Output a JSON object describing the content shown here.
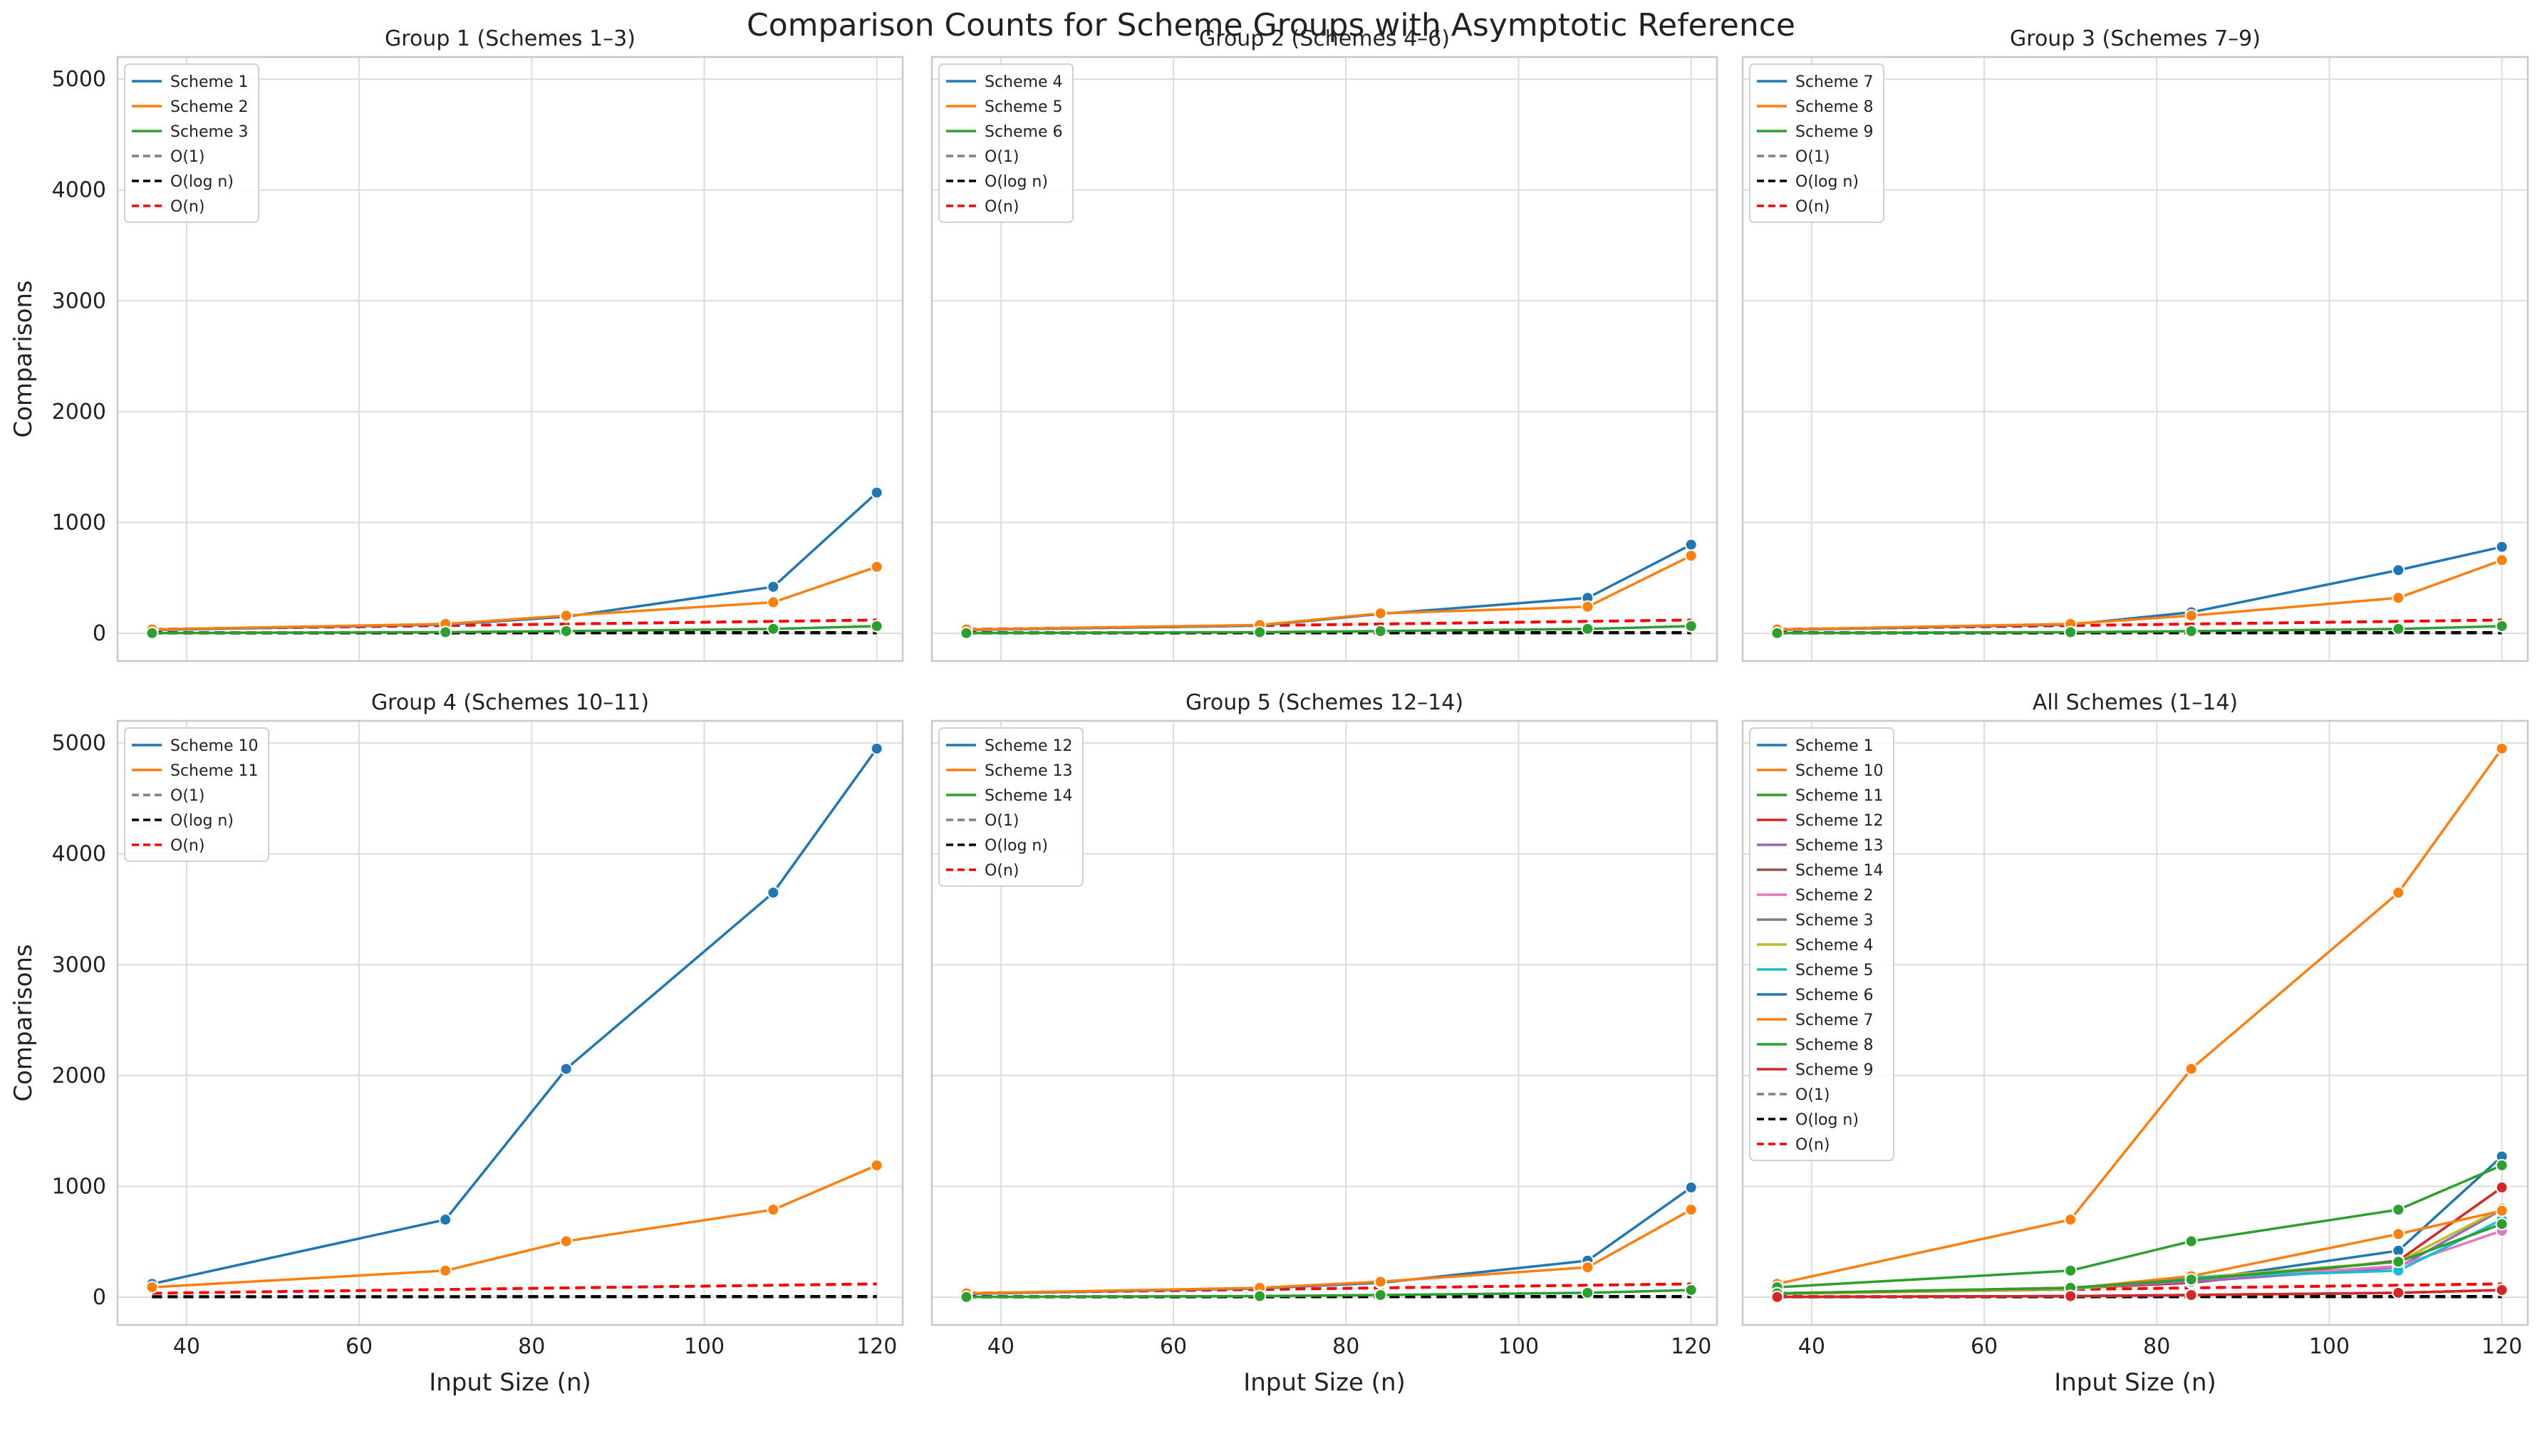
{
  "figure_title": "Comparison Counts for Scheme Groups with Asymptotic Reference",
  "shared_axes": {
    "xlabel": "Input Size (n)",
    "ylabel": "Comparisons",
    "xlim": [
      32,
      123
    ],
    "ylim": [
      -250,
      5200
    ],
    "xticks": [
      40,
      60,
      80,
      100,
      120
    ],
    "yticks": [
      0,
      1000,
      2000,
      3000,
      4000,
      5000
    ],
    "grid": true
  },
  "chart_data": [
    {
      "type": "line",
      "title": "Group 1 (Schemes 1–3)",
      "legend_position": "top-left",
      "x": [
        36,
        70,
        84,
        108,
        120
      ],
      "series": [
        {
          "name": "Scheme 1",
          "values": [
            30,
            80,
            150,
            420,
            1270
          ],
          "color": "#1f77b4",
          "style": "solid",
          "markers": true
        },
        {
          "name": "Scheme 2",
          "values": [
            35,
            85,
            160,
            280,
            600
          ],
          "color": "#ff7f0e",
          "style": "solid",
          "markers": true
        },
        {
          "name": "Scheme 3",
          "values": [
            2,
            10,
            20,
            40,
            65
          ],
          "color": "#2ca02c",
          "style": "solid",
          "markers": true
        },
        {
          "name": "O(1)",
          "values": [
            1,
            1,
            1,
            1,
            1
          ],
          "color": "#808080",
          "style": "dashed",
          "markers": false
        },
        {
          "name": "O(log n)",
          "values": [
            5.2,
            6.1,
            6.4,
            6.8,
            6.9
          ],
          "color": "#000000",
          "style": "dashed",
          "markers": false
        },
        {
          "name": "O(n)",
          "values": [
            36,
            70,
            84,
            108,
            120
          ],
          "color": "#ff0000",
          "style": "dashed",
          "markers": false
        }
      ]
    },
    {
      "type": "line",
      "title": "Group 2 (Schemes 4–6)",
      "legend_position": "top-left",
      "x": [
        36,
        70,
        84,
        108,
        120
      ],
      "series": [
        {
          "name": "Scheme 4",
          "values": [
            30,
            70,
            175,
            320,
            800
          ],
          "color": "#1f77b4",
          "style": "solid",
          "markers": true
        },
        {
          "name": "Scheme 5",
          "values": [
            35,
            75,
            180,
            240,
            700
          ],
          "color": "#ff7f0e",
          "style": "solid",
          "markers": true
        },
        {
          "name": "Scheme 6",
          "values": [
            2,
            10,
            20,
            40,
            65
          ],
          "color": "#2ca02c",
          "style": "solid",
          "markers": true
        },
        {
          "name": "O(1)",
          "values": [
            1,
            1,
            1,
            1,
            1
          ],
          "color": "#808080",
          "style": "dashed",
          "markers": false
        },
        {
          "name": "O(log n)",
          "values": [
            5.2,
            6.1,
            6.4,
            6.8,
            6.9
          ],
          "color": "#000000",
          "style": "dashed",
          "markers": false
        },
        {
          "name": "O(n)",
          "values": [
            36,
            70,
            84,
            108,
            120
          ],
          "color": "#ff0000",
          "style": "dashed",
          "markers": false
        }
      ]
    },
    {
      "type": "line",
      "title": "Group 3 (Schemes 7–9)",
      "legend_position": "top-left",
      "x": [
        36,
        70,
        84,
        108,
        120
      ],
      "series": [
        {
          "name": "Scheme 7",
          "values": [
            30,
            80,
            190,
            570,
            780
          ],
          "color": "#1f77b4",
          "style": "solid",
          "markers": true
        },
        {
          "name": "Scheme 8",
          "values": [
            35,
            85,
            160,
            320,
            660
          ],
          "color": "#ff7f0e",
          "style": "solid",
          "markers": true
        },
        {
          "name": "Scheme 9",
          "values": [
            2,
            10,
            20,
            40,
            65
          ],
          "color": "#2ca02c",
          "style": "solid",
          "markers": true
        },
        {
          "name": "O(1)",
          "values": [
            1,
            1,
            1,
            1,
            1
          ],
          "color": "#808080",
          "style": "dashed",
          "markers": false
        },
        {
          "name": "O(log n)",
          "values": [
            5.2,
            6.1,
            6.4,
            6.8,
            6.9
          ],
          "color": "#000000",
          "style": "dashed",
          "markers": false
        },
        {
          "name": "O(n)",
          "values": [
            36,
            70,
            84,
            108,
            120
          ],
          "color": "#ff0000",
          "style": "dashed",
          "markers": false
        }
      ]
    },
    {
      "type": "line",
      "title": "Group 4 (Schemes 10–11)",
      "legend_position": "top-left",
      "x": [
        36,
        70,
        84,
        108,
        120
      ],
      "series": [
        {
          "name": "Scheme 10",
          "values": [
            120,
            700,
            2060,
            3650,
            4950
          ],
          "color": "#1f77b4",
          "style": "solid",
          "markers": true
        },
        {
          "name": "Scheme 11",
          "values": [
            90,
            240,
            505,
            790,
            1190
          ],
          "color": "#ff7f0e",
          "style": "solid",
          "markers": true
        },
        {
          "name": "O(1)",
          "values": [
            1,
            1,
            1,
            1,
            1
          ],
          "color": "#808080",
          "style": "dashed",
          "markers": false
        },
        {
          "name": "O(log n)",
          "values": [
            5.2,
            6.1,
            6.4,
            6.8,
            6.9
          ],
          "color": "#000000",
          "style": "dashed",
          "markers": false
        },
        {
          "name": "O(n)",
          "values": [
            36,
            70,
            84,
            108,
            120
          ],
          "color": "#ff0000",
          "style": "dashed",
          "markers": false
        }
      ]
    },
    {
      "type": "line",
      "title": "Group 5 (Schemes 12–14)",
      "legend_position": "top-left",
      "x": [
        36,
        70,
        84,
        108,
        120
      ],
      "series": [
        {
          "name": "Scheme 12",
          "values": [
            30,
            80,
            130,
            330,
            990
          ],
          "color": "#1f77b4",
          "style": "solid",
          "markers": true
        },
        {
          "name": "Scheme 13",
          "values": [
            35,
            85,
            140,
            270,
            790
          ],
          "color": "#ff7f0e",
          "style": "solid",
          "markers": true
        },
        {
          "name": "Scheme 14",
          "values": [
            2,
            10,
            20,
            40,
            65
          ],
          "color": "#2ca02c",
          "style": "solid",
          "markers": true
        },
        {
          "name": "O(1)",
          "values": [
            1,
            1,
            1,
            1,
            1
          ],
          "color": "#808080",
          "style": "dashed",
          "markers": false
        },
        {
          "name": "O(log n)",
          "values": [
            5.2,
            6.1,
            6.4,
            6.8,
            6.9
          ],
          "color": "#000000",
          "style": "dashed",
          "markers": false
        },
        {
          "name": "O(n)",
          "values": [
            36,
            70,
            84,
            108,
            120
          ],
          "color": "#ff0000",
          "style": "dashed",
          "markers": false
        }
      ]
    },
    {
      "type": "line",
      "title": "All Schemes (1–14)",
      "legend_position": "top-left",
      "x": [
        36,
        70,
        84,
        108,
        120
      ],
      "series": [
        {
          "name": "Scheme 1",
          "values": [
            30,
            80,
            150,
            420,
            1270
          ],
          "color": "#1f77b4",
          "style": "solid",
          "markers": true
        },
        {
          "name": "Scheme 10",
          "values": [
            120,
            700,
            2060,
            3650,
            4950
          ],
          "color": "#ff7f0e",
          "style": "solid",
          "markers": true
        },
        {
          "name": "Scheme 11",
          "values": [
            90,
            240,
            505,
            790,
            1190
          ],
          "color": "#2ca02c",
          "style": "solid",
          "markers": true
        },
        {
          "name": "Scheme 12",
          "values": [
            30,
            80,
            130,
            330,
            990
          ],
          "color": "#d62728",
          "style": "solid",
          "markers": true
        },
        {
          "name": "Scheme 13",
          "values": [
            35,
            85,
            140,
            270,
            790
          ],
          "color": "#9467bd",
          "style": "solid",
          "markers": true
        },
        {
          "name": "Scheme 14",
          "values": [
            2,
            10,
            20,
            40,
            65
          ],
          "color": "#8c564b",
          "style": "solid",
          "markers": true
        },
        {
          "name": "Scheme 2",
          "values": [
            35,
            85,
            160,
            280,
            600
          ],
          "color": "#e377c2",
          "style": "solid",
          "markers": true
        },
        {
          "name": "Scheme 3",
          "values": [
            2,
            10,
            20,
            40,
            65
          ],
          "color": "#7f7f7f",
          "style": "solid",
          "markers": true
        },
        {
          "name": "Scheme 4",
          "values": [
            30,
            70,
            175,
            320,
            800
          ],
          "color": "#bcbd22",
          "style": "solid",
          "markers": true
        },
        {
          "name": "Scheme 5",
          "values": [
            35,
            75,
            180,
            240,
            700
          ],
          "color": "#17becf",
          "style": "solid",
          "markers": true
        },
        {
          "name": "Scheme 6",
          "values": [
            2,
            10,
            20,
            40,
            65
          ],
          "color": "#1f77b4",
          "style": "solid",
          "markers": true
        },
        {
          "name": "Scheme 7",
          "values": [
            30,
            80,
            190,
            570,
            780
          ],
          "color": "#ff7f0e",
          "style": "solid",
          "markers": true
        },
        {
          "name": "Scheme 8",
          "values": [
            35,
            85,
            160,
            320,
            660
          ],
          "color": "#2ca02c",
          "style": "solid",
          "markers": true
        },
        {
          "name": "Scheme 9",
          "values": [
            2,
            10,
            20,
            40,
            65
          ],
          "color": "#d62728",
          "style": "solid",
          "markers": true
        },
        {
          "name": "O(1)",
          "values": [
            1,
            1,
            1,
            1,
            1
          ],
          "color": "#808080",
          "style": "dashed",
          "markers": false
        },
        {
          "name": "O(log n)",
          "values": [
            5.2,
            6.1,
            6.4,
            6.8,
            6.9
          ],
          "color": "#000000",
          "style": "dashed",
          "markers": false
        },
        {
          "name": "O(n)",
          "values": [
            36,
            70,
            84,
            108,
            120
          ],
          "color": "#ff0000",
          "style": "dashed",
          "markers": false
        }
      ]
    }
  ]
}
